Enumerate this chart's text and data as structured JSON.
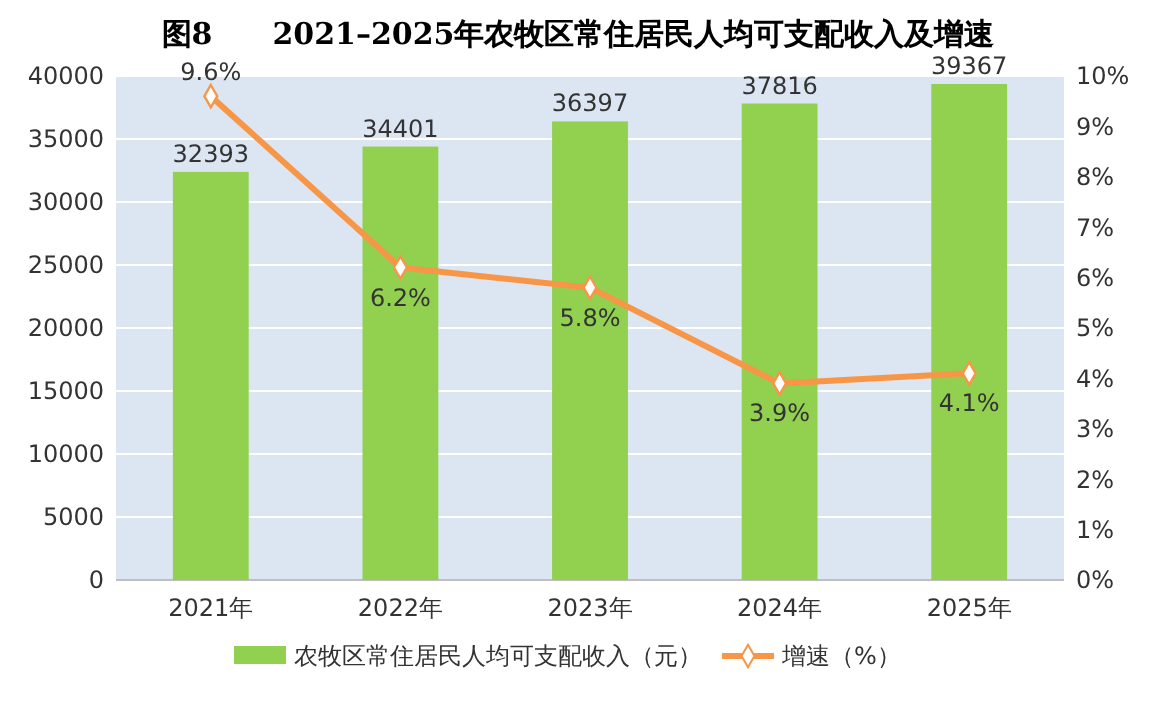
{
  "chart_data": {
    "type": "bar",
    "title": "图8　　2021–2025年农牧区常住居民人均可支配收入及增速",
    "categories": [
      "2021年",
      "2022年",
      "2023年",
      "2024年",
      "2025年"
    ],
    "series": [
      {
        "name": "农牧区常住居民人均可支配收入（元）",
        "color": "#92d050",
        "values": [
          32393,
          34401,
          36397,
          37816,
          39367
        ],
        "value_labels": [
          "32393",
          "34401",
          "36397",
          "37816",
          "39367"
        ]
      },
      {
        "name": "增速（%）",
        "type": "line",
        "axis": "y2",
        "color": "#f79646",
        "values": [
          9.6,
          6.2,
          5.8,
          3.9,
          4.1
        ],
        "value_labels": [
          "9.6%",
          "6.2%",
          "5.8%",
          "3.9%",
          "4.1%"
        ]
      }
    ],
    "ylim": [
      0,
      40000
    ],
    "yticks": [
      0,
      5000,
      10000,
      15000,
      20000,
      25000,
      30000,
      35000,
      40000
    ],
    "y2lim": [
      0,
      10
    ],
    "y2ticks": [
      {
        "value": 0,
        "label": "0%"
      },
      {
        "value": 1,
        "label": "1%"
      },
      {
        "value": 2,
        "label": "2%"
      },
      {
        "value": 3,
        "label": "3%"
      },
      {
        "value": 4,
        "label": "4%"
      },
      {
        "value": 5,
        "label": "5%"
      },
      {
        "value": 6,
        "label": "6%"
      },
      {
        "value": 7,
        "label": "7%"
      },
      {
        "value": 8,
        "label": "8%"
      },
      {
        "value": 9,
        "label": "9%"
      },
      {
        "value": 10,
        "label": "10%"
      }
    ],
    "grid": "y",
    "legend": "bottom",
    "marker": "diamond",
    "line_style": "solid"
  }
}
